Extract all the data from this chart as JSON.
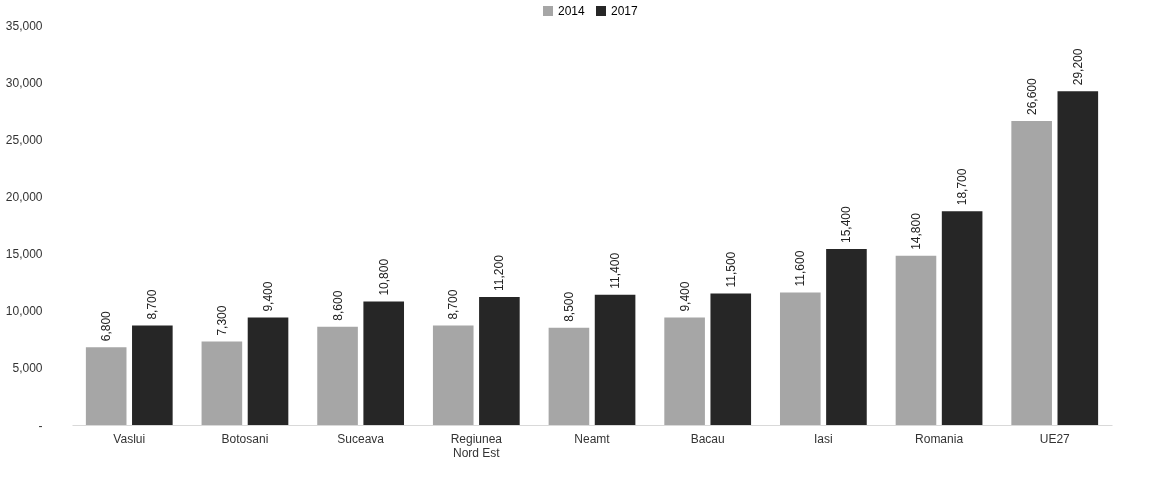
{
  "chart_data": {
    "type": "bar",
    "categories": [
      "Vaslui",
      "Botosani",
      "Suceava",
      "Regiunea Nord Est",
      "Neamt",
      "Bacau",
      "Iasi",
      "Romania",
      "UE27"
    ],
    "series": [
      {
        "name": "2014",
        "color": "#a6a6a6",
        "values": [
          6800,
          7300,
          8600,
          8700,
          8500,
          9400,
          11600,
          14800,
          26600
        ],
        "value_labels": [
          "6,800",
          "7,300",
          "8,600",
          "8,700",
          "8,500",
          "9,400",
          "11,600",
          "14,800",
          "26,600"
        ]
      },
      {
        "name": "2017",
        "color": "#262626",
        "values": [
          8700,
          9400,
          10800,
          11200,
          11400,
          11500,
          15400,
          18700,
          29200
        ],
        "value_labels": [
          "8,700",
          "9,400",
          "10,800",
          "11,200",
          "11,400",
          "11,500",
          "15,400",
          "18,700",
          "29,200"
        ]
      }
    ],
    "ylim": [
      0,
      35000
    ],
    "yticks": [
      {
        "value": 0,
        "label": "-"
      },
      {
        "value": 5000,
        "label": "5,000"
      },
      {
        "value": 10000,
        "label": "10,000"
      },
      {
        "value": 15000,
        "label": "15,000"
      },
      {
        "value": 20000,
        "label": "20,000"
      },
      {
        "value": 25000,
        "label": "25,000"
      },
      {
        "value": 30000,
        "label": "30,000"
      },
      {
        "value": 35000,
        "label": "35,000"
      }
    ],
    "legend": "top",
    "grid": false
  }
}
